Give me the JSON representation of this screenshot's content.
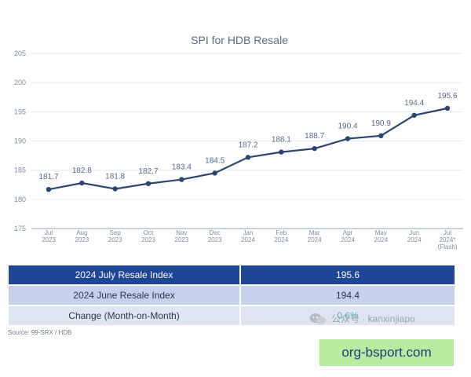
{
  "chart_data": {
    "type": "line",
    "title": "SPI for HDB Resale",
    "categories": [
      [
        "Jul",
        "2023"
      ],
      [
        "Aug",
        "2023"
      ],
      [
        "Sep",
        "2023"
      ],
      [
        "Oct",
        "2023"
      ],
      [
        "Nov",
        "2023"
      ],
      [
        "Dec",
        "2023"
      ],
      [
        "Jan",
        "2024"
      ],
      [
        "Feb",
        "2024"
      ],
      [
        "Mar",
        "2024"
      ],
      [
        "Apr",
        "2024"
      ],
      [
        "May",
        "2024"
      ],
      [
        "Jun",
        "2024"
      ],
      [
        "Jul",
        "2024*",
        "(Flash)"
      ]
    ],
    "series": [
      {
        "values": [
          181.7,
          182.8,
          181.8,
          182.7,
          183.4,
          184.5,
          187.2,
          188.1,
          188.7,
          190.4,
          190.9,
          194.4,
          195.6
        ]
      }
    ],
    "data_labels": [
      "181.7",
      "182.8",
      "181.8",
      "182.7",
      "183.4",
      "184.5",
      "187.2",
      "188.1",
      "188.7",
      "190.4",
      "190.9",
      "194.4",
      "195.6"
    ],
    "ylim": [
      175,
      205
    ],
    "yticks": [
      175,
      180,
      185,
      190,
      195,
      200,
      205
    ],
    "grid": true,
    "line_color": "#2b4470"
  },
  "table": {
    "rows": [
      {
        "label": "2024 July Resale Index",
        "value": "195.6"
      },
      {
        "label": "2024 June Resale Index",
        "value": "194.4"
      },
      {
        "label": "Change (Month-on-Month)",
        "value": "0.6%"
      }
    ]
  },
  "source": "Source: 99-SRX / HDB",
  "watermark": {
    "icon": "wechat-icon",
    "text": "公众号 · kanxinjiapo"
  },
  "badge": {
    "text": "org-bsport.com"
  },
  "colors": {
    "header_blue": "#1f4596",
    "row_light": "#c6d2ea",
    "row_lighter": "#dfe5f3",
    "badge_green": "#b7eda0"
  }
}
